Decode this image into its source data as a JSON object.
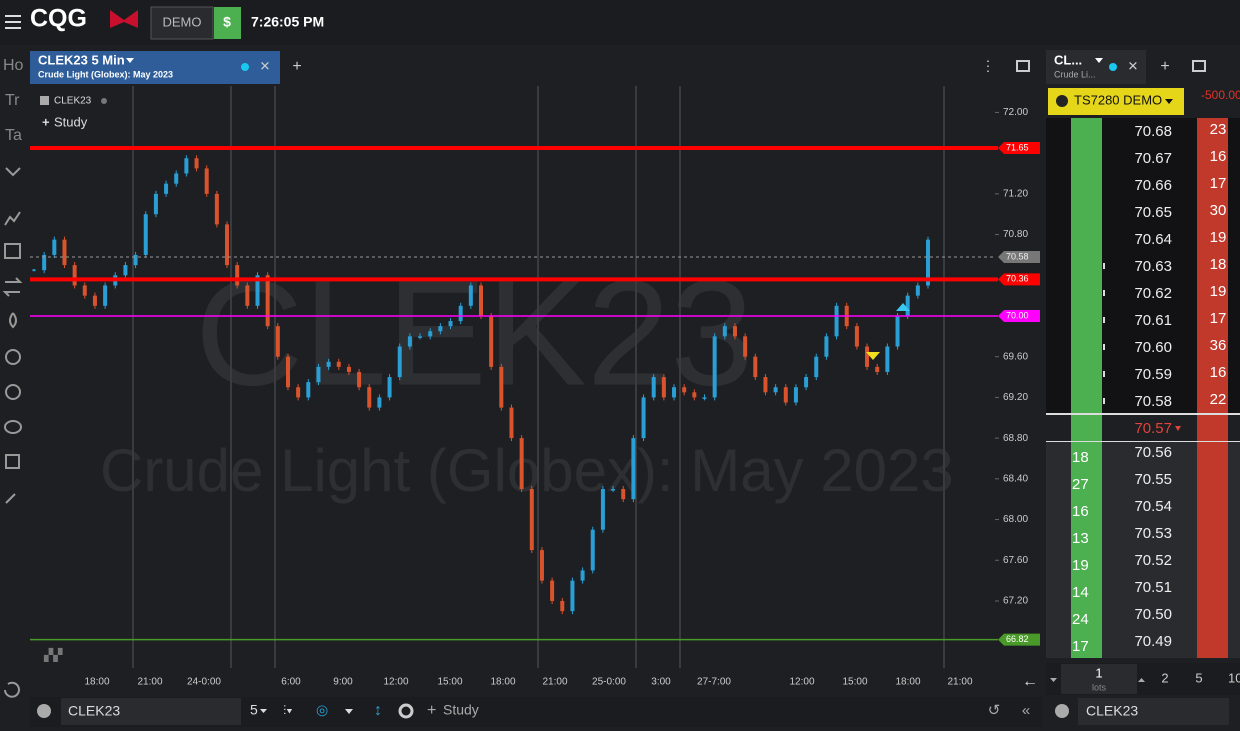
{
  "header": {
    "logo": "CQG",
    "mode": "DEMO",
    "currency": "$",
    "time": "7:26:05 PM"
  },
  "sidebar": {
    "tabs": [
      "Ho",
      "Tr",
      "Ta"
    ]
  },
  "chart_tab": {
    "title": "CLEK23 5 Min",
    "subtitle": "Crude Light (Globex): May 2023"
  },
  "chart_data": {
    "type": "candlestick",
    "legend": "CLEK23",
    "study_button": "Study",
    "watermark_symbol": "CLEK23",
    "watermark_name": "Crude Light (Globex): May 2023",
    "x_labels": [
      "18:00",
      "21:00",
      "24-0:00",
      "6:00",
      "9:00",
      "12:00",
      "15:00",
      "18:00",
      "21:00",
      "25-0:00",
      "3:00",
      "27-7:00",
      "12:00",
      "15:00",
      "18:00",
      "21:00"
    ],
    "close": [
      70.45,
      70.6,
      70.75,
      70.5,
      70.3,
      70.2,
      70.1,
      70.3,
      70.4,
      70.5,
      70.6,
      71.0,
      71.2,
      71.3,
      71.4,
      71.55,
      71.45,
      71.2,
      70.9,
      70.5,
      70.3,
      70.1,
      70.4,
      69.9,
      69.6,
      69.3,
      69.2,
      69.35,
      69.5,
      69.55,
      69.5,
      69.45,
      69.3,
      69.1,
      69.2,
      69.4,
      69.7,
      69.8,
      69.8,
      69.85,
      69.9,
      69.95,
      70.1,
      70.3,
      70.0,
      69.5,
      69.1,
      68.8,
      68.3,
      67.7,
      67.4,
      67.2,
      67.1,
      67.4,
      67.5,
      67.9,
      68.3,
      68.3,
      68.2,
      68.8,
      69.2,
      69.4,
      69.2,
      69.3,
      69.25,
      69.2,
      69.2,
      69.8,
      69.9,
      69.8,
      69.6,
      69.4,
      69.25,
      69.3,
      69.15,
      69.3,
      69.4,
      69.6,
      69.8,
      70.1,
      69.9,
      69.7,
      69.5,
      69.45,
      69.7,
      70.0,
      70.2,
      70.3,
      70.75
    ],
    "up_color": "#2a9fd6",
    "down_color": "#d9532c",
    "ylim": [
      66.62,
      72.24
    ],
    "yticks": [
      {
        "value": 72,
        "label": "72.00"
      },
      {
        "value": 71.2,
        "label": "71.20"
      },
      {
        "value": 70.8,
        "label": "70.80"
      },
      {
        "value": 69.6,
        "label": "69.60"
      },
      {
        "value": 69.2,
        "label": "69.20"
      },
      {
        "value": 68.8,
        "label": "68.80"
      },
      {
        "value": 68.4,
        "label": "68.40"
      },
      {
        "value": 68,
        "label": "68.00"
      },
      {
        "value": 67.6,
        "label": "67.60"
      },
      {
        "value": 67.2,
        "label": "67.20"
      }
    ],
    "levels": [
      {
        "value": 71.65,
        "color": "#ff0000"
      },
      {
        "value": 70.36,
        "color": "#ff0000"
      },
      {
        "value": 70,
        "label": "70.00",
        "color": "#ff00ff"
      },
      {
        "value": 66.82,
        "color": "#4a9a2a"
      }
    ],
    "last_price": 70.58
  },
  "toolbar": {
    "symbol": "CLEK23",
    "interval": "5",
    "study": "Study"
  },
  "dom": {
    "symbol": "CL...",
    "name": "Crude Li...",
    "account": "TS7280 DEMO",
    "pnl": "-500.00",
    "asks": [
      {
        "price": "70.68",
        "size": 23
      },
      {
        "price": "70.67",
        "size": 16
      },
      {
        "price": "70.66",
        "size": 17
      },
      {
        "price": "70.65",
        "size": 30
      },
      {
        "price": "70.64",
        "size": 19
      },
      {
        "price": "70.63",
        "size": 18
      },
      {
        "price": "70.62",
        "size": 19
      },
      {
        "price": "70.61",
        "size": 17
      },
      {
        "price": "70.60",
        "size": 36
      },
      {
        "price": "70.59",
        "size": 16
      },
      {
        "price": "70.58",
        "size": 22
      }
    ],
    "last": "70.57",
    "bids": [
      {
        "price": "70.56",
        "size": 18
      },
      {
        "price": "70.55",
        "size": 27
      },
      {
        "price": "70.54",
        "size": 16
      },
      {
        "price": "70.53",
        "size": 13
      },
      {
        "price": "70.52",
        "size": 19
      },
      {
        "price": "70.51",
        "size": 14
      },
      {
        "price": "70.50",
        "size": 24
      },
      {
        "price": "70.49",
        "size": 17
      }
    ],
    "lots": 1,
    "lots_label": "lots",
    "quick_lots": [
      2,
      5,
      10
    ],
    "symbol_input": "CLEK23"
  }
}
